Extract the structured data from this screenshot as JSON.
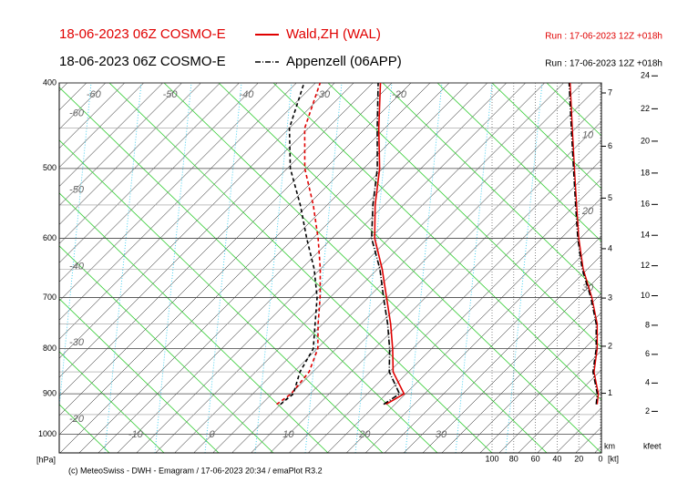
{
  "chart_data": {
    "type": "emagram",
    "pressure": [
      925,
      900,
      850,
      800,
      750,
      700,
      650,
      600,
      550,
      500,
      450,
      400
    ],
    "series": [
      {
        "name": "Wald,ZH (WAL)",
        "model": "18-06-2023 06Z COSMO-E",
        "run": "Run : 17-06-2023 12Z +018h",
        "color": "#e00000",
        "temperature": [
          18.8,
          19.8,
          15.5,
          12.4,
          8.9,
          4.9,
          0.6,
          -4.4,
          -8.7,
          -12.9,
          -18.3,
          -24.0
        ],
        "dewpoint": [
          4.5,
          5.0,
          4.5,
          2.6,
          -0.6,
          -3.8,
          -7.5,
          -11.8,
          -16.8,
          -22.7,
          -28.0,
          -31.9
        ],
        "wind_speed": [
          3,
          2,
          6,
          3,
          3,
          8,
          16,
          20,
          22,
          24,
          26,
          28
        ]
      },
      {
        "name": "Appenzell (06APP)",
        "model": "18-06-2023 06Z COSMO-E",
        "run": "Run : 17-06-2023 12Z +018h",
        "color": "#000000",
        "temperature": [
          18.5,
          19.2,
          15.0,
          12.0,
          8.5,
          4.5,
          0.3,
          -4.8,
          -9.0,
          -13.2,
          -18.5,
          -24.3
        ],
        "dewpoint": [
          5.0,
          5.3,
          3.3,
          2.0,
          -1.0,
          -4.2,
          -8.3,
          -13.3,
          -18.5,
          -24.6,
          -30.0,
          -34.0
        ],
        "wind_speed": [
          4,
          3,
          7,
          4,
          4,
          9,
          17,
          21,
          23,
          25,
          27,
          29
        ]
      }
    ],
    "ylim": [
      1050,
      400
    ],
    "yticks": [
      400,
      500,
      600,
      700,
      800,
      900,
      1000
    ],
    "y_unit": "[hPa]",
    "log_y": true,
    "xlim": [
      -20,
      51
    ],
    "xticks": [
      -10,
      0,
      10,
      20,
      30
    ],
    "isotherm_labels_top": [
      -60,
      -50,
      -40,
      -30,
      -20
    ],
    "isotherm_labels_left": [
      -60,
      -50,
      -40,
      -30,
      -20
    ],
    "isotherm_labels_right": [
      10,
      20,
      30
    ],
    "km_ticks": [
      1,
      2,
      3,
      4,
      5,
      6,
      7
    ],
    "km_unit": "km",
    "kfeet_ticks": [
      2,
      4,
      6,
      8,
      10,
      12,
      14,
      16,
      18,
      20,
      22,
      24
    ],
    "kfeet_unit": "kfeet",
    "wind_xlim": [
      0,
      100
    ],
    "wind_ticks": [
      100,
      80,
      60,
      40,
      20,
      0
    ],
    "wind_unit": "[kt]",
    "footer": "(c) MeteoSwiss - DWH - Emagram / 17-06-2023  20:34 / emaPlot R3.2"
  }
}
